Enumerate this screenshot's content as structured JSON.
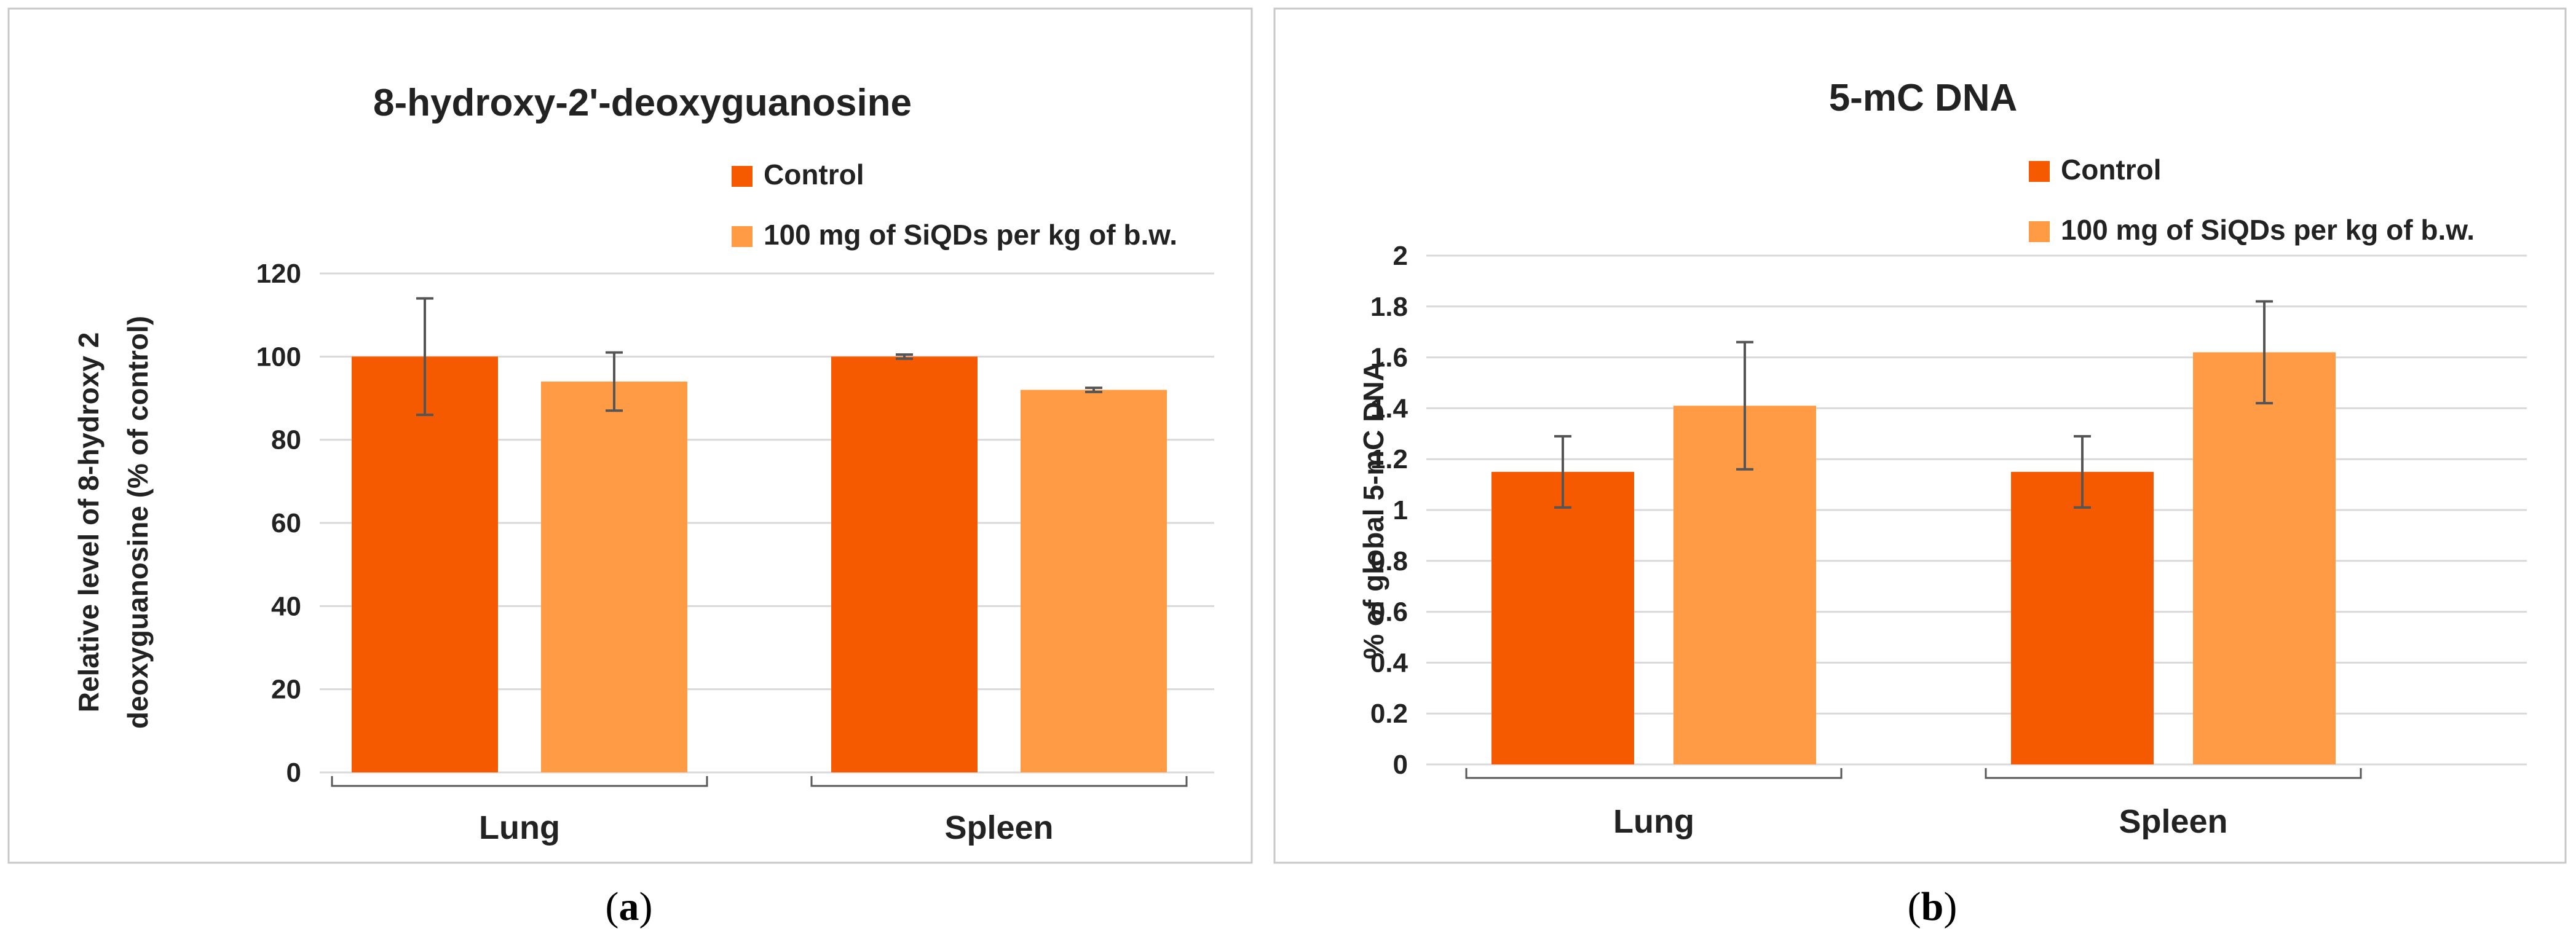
{
  "chart_data": [
    {
      "panel": "(a)",
      "panel_letter": "a",
      "type": "bar",
      "title": "8-hydroxy-2'-deoxyguanosine",
      "ylabel_lines": [
        "Relative level of 8-hydroxy 2",
        "deoxyguanosine (% of control)"
      ],
      "xlabel": "",
      "categories": [
        "Lung",
        "Spleen"
      ],
      "series": [
        {
          "name": "Control",
          "color": "#F55A00",
          "values": [
            100,
            100
          ],
          "errors": [
            14,
            0.5
          ]
        },
        {
          "name": "100 mg of SiQDs per kg of b.w.",
          "color": "#FF9B45",
          "values": [
            94,
            92
          ],
          "errors": [
            7,
            0.5
          ]
        }
      ],
      "ylim": [
        0,
        120
      ],
      "yticks": [
        0,
        20,
        40,
        60,
        80,
        100,
        120
      ],
      "ytick_labels": [
        "0",
        "20",
        "40",
        "60",
        "80",
        "100",
        "120"
      ],
      "grid": true,
      "legend_position": "top-right"
    },
    {
      "panel": "(b)",
      "panel_letter": "b",
      "type": "bar",
      "title": "5-mC DNA",
      "ylabel_lines": [
        "% of global 5-mC DNA"
      ],
      "xlabel": "",
      "categories": [
        "Lung",
        "Spleen"
      ],
      "series": [
        {
          "name": "Control",
          "color": "#F55A00",
          "values": [
            1.15,
            1.15
          ],
          "errors": [
            0.14,
            0.14
          ]
        },
        {
          "name": "100 mg of SiQDs per kg of b.w.",
          "color": "#FF9B45",
          "values": [
            1.41,
            1.62
          ],
          "errors": [
            0.25,
            0.2
          ]
        }
      ],
      "ylim": [
        0,
        2
      ],
      "yticks": [
        0,
        0.2,
        0.4,
        0.6,
        0.8,
        1,
        1.2,
        1.4,
        1.6,
        1.8,
        2
      ],
      "ytick_labels": [
        "0",
        "0.2",
        "0.4",
        "0.6",
        "0.8",
        "1",
        "1.2",
        "1.4",
        "1.6",
        "1.8",
        "2"
      ],
      "grid": true,
      "legend_position": "top-right"
    }
  ]
}
